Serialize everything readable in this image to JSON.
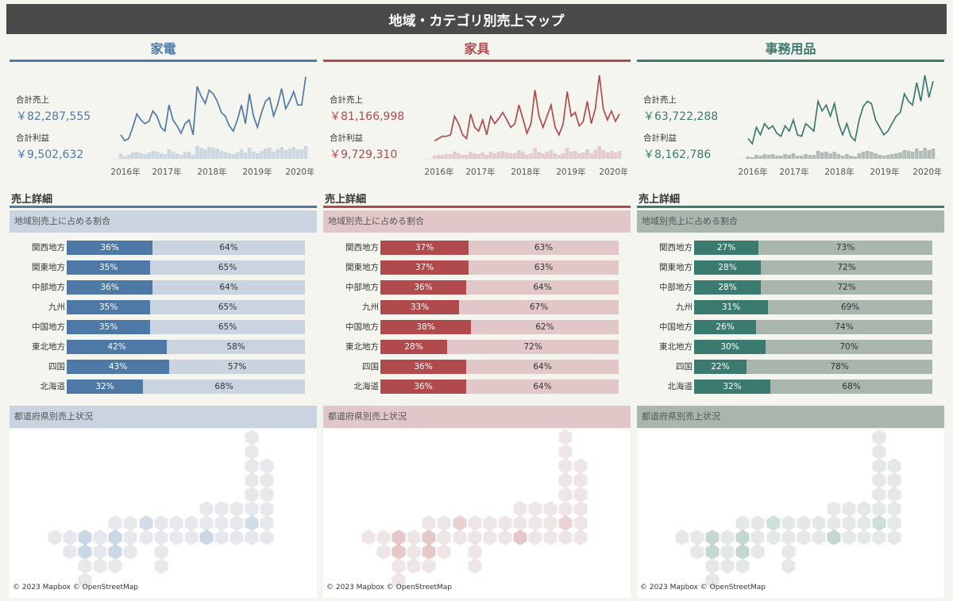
{
  "title": "地域・カテゴリ別売上マップ",
  "labels": {
    "total_sales": "合計売上",
    "total_profit": "合計利益",
    "detail": "売上詳細",
    "share": "地域別売上に占める割合",
    "pref": "都道府県別売上状況",
    "credit": "© 2023 Mapbox © OpenStreetMap"
  },
  "chart_data": [
    {
      "type": "bar",
      "category": "家電",
      "color": "#4e79a7",
      "light": "#c9d4e0",
      "map_light": "#e6e8ec",
      "total_sales": "￥82,287,555",
      "total_profit": "￥9,502,632",
      "years": [
        "2016年",
        "2017年",
        "2018年",
        "2019年",
        "2020年"
      ],
      "sales_series": [
        30,
        22,
        25,
        40,
        58,
        50,
        45,
        48,
        62,
        55,
        40,
        35,
        70,
        50,
        42,
        32,
        45,
        50,
        30,
        95,
        82,
        72,
        90,
        85,
        75,
        60,
        55,
        42,
        35,
        50,
        70,
        45,
        85,
        55,
        40,
        60,
        75,
        80,
        55,
        70,
        92,
        65,
        75,
        88,
        70,
        70,
        108
      ],
      "profit_series": [
        6,
        3,
        5,
        8,
        9,
        7,
        6,
        8,
        10,
        9,
        7,
        6,
        12,
        9,
        7,
        5,
        8,
        9,
        5,
        16,
        14,
        12,
        15,
        14,
        13,
        10,
        9,
        7,
        6,
        8,
        12,
        8,
        14,
        9,
        7,
        10,
        13,
        14,
        9,
        12,
        15,
        11,
        13,
        15,
        12,
        12,
        16
      ],
      "regions": [
        "関西地方",
        "関東地方",
        "中部地方",
        "九州",
        "中国地方",
        "東北地方",
        "四国",
        "北海道"
      ],
      "share": [
        36,
        35,
        36,
        35,
        35,
        42,
        43,
        32
      ]
    },
    {
      "type": "bar",
      "category": "家具",
      "color": "#b04a4d",
      "light": "#e2c7c8",
      "map_light": "#ede5e6",
      "total_sales": "￥81,166,998",
      "total_profit": "￥9,729,310",
      "years": [
        "2016年",
        "2017年",
        "2018年",
        "2019年",
        "2020年"
      ],
      "sales_series": [
        22,
        25,
        28,
        28,
        30,
        55,
        45,
        30,
        25,
        58,
        40,
        35,
        50,
        30,
        55,
        45,
        52,
        60,
        50,
        40,
        45,
        70,
        52,
        32,
        45,
        90,
        55,
        40,
        55,
        70,
        40,
        30,
        45,
        88,
        55,
        60,
        42,
        48,
        75,
        45,
        65,
        110,
        65,
        50,
        62,
        48,
        58
      ],
      "profit_series": [
        4,
        5,
        5,
        6,
        6,
        9,
        7,
        5,
        5,
        9,
        7,
        6,
        8,
        5,
        9,
        7,
        9,
        10,
        8,
        7,
        7,
        11,
        9,
        5,
        7,
        14,
        9,
        7,
        9,
        11,
        7,
        5,
        7,
        14,
        9,
        10,
        7,
        8,
        12,
        7,
        11,
        16,
        11,
        8,
        10,
        8,
        10
      ],
      "regions": [
        "関西地方",
        "関東地方",
        "中部地方",
        "九州",
        "中国地方",
        "東北地方",
        "四国",
        "北海道"
      ],
      "share": [
        37,
        37,
        36,
        33,
        38,
        28,
        36,
        36
      ]
    },
    {
      "type": "bar",
      "category": "事務用品",
      "color": "#3b7a6e",
      "light": "#a9b6ae",
      "map_light": "#e4e9e8",
      "total_sales": "￥63,722,288",
      "total_profit": "￥8,162,786",
      "years": [
        "2016年",
        "2017年",
        "2018年",
        "2019年",
        "2020年"
      ],
      "sales_series": [
        25,
        18,
        40,
        30,
        45,
        38,
        42,
        32,
        28,
        42,
        35,
        50,
        30,
        28,
        45,
        40,
        35,
        75,
        62,
        70,
        55,
        72,
        45,
        30,
        45,
        28,
        22,
        50,
        68,
        75,
        72,
        50,
        40,
        30,
        35,
        45,
        55,
        60,
        85,
        75,
        70,
        100,
        75,
        110,
        80,
        102
      ],
      "profit_series": [
        3,
        2,
        5,
        4,
        6,
        5,
        6,
        4,
        4,
        6,
        5,
        7,
        4,
        4,
        6,
        5,
        5,
        10,
        8,
        9,
        7,
        9,
        6,
        4,
        6,
        4,
        3,
        7,
        9,
        10,
        9,
        7,
        5,
        4,
        5,
        6,
        7,
        8,
        11,
        10,
        9,
        13,
        10,
        14,
        11,
        13
      ],
      "regions": [
        "関西地方",
        "関東地方",
        "中部地方",
        "九州",
        "中国地方",
        "東北地方",
        "四国",
        "北海道"
      ],
      "share": [
        27,
        28,
        28,
        31,
        26,
        30,
        22,
        32
      ]
    }
  ]
}
